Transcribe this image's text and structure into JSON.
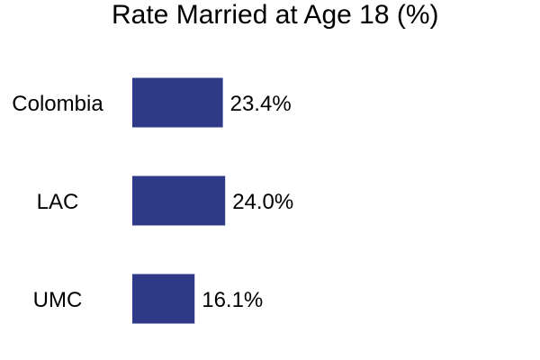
{
  "chart_data": {
    "type": "bar",
    "orientation": "horizontal",
    "title": "Rate Married at Age 18 (%)",
    "categories": [
      "Colombia",
      "LAC",
      "UMC"
    ],
    "values": [
      23.4,
      24.0,
      16.1
    ],
    "value_labels": [
      "23.4%",
      "24.0%",
      "16.1%"
    ],
    "xlabel": "",
    "ylabel": "",
    "xlim": [
      0,
      100
    ],
    "grid": false,
    "legend": "none",
    "bar_color": "#2e3a87"
  }
}
